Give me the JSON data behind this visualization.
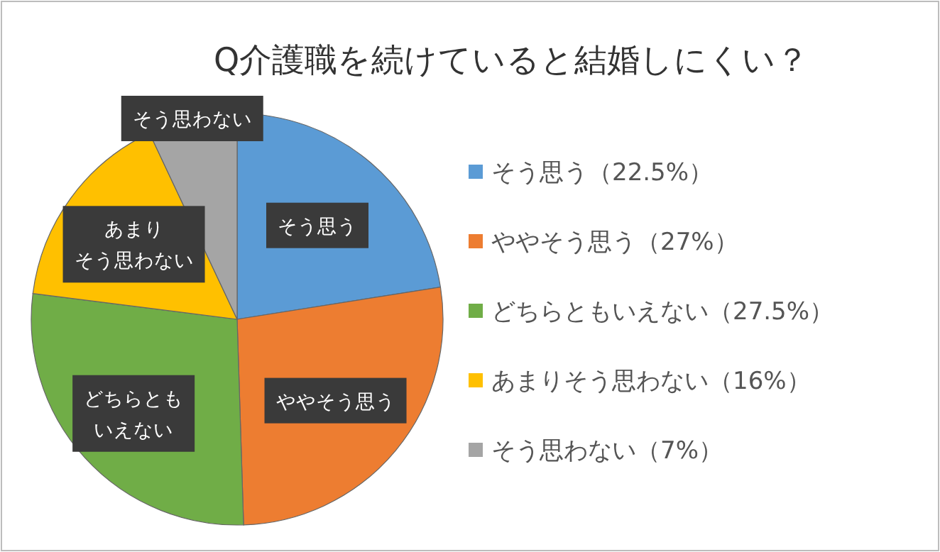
{
  "chart_data": {
    "type": "pie",
    "title": "Q介護職を続けていると結婚しにくい？",
    "categories": [
      "そう思う",
      "ややそう思う",
      "どちらともいえない",
      "あまりそう思わない",
      "そう思わない"
    ],
    "values": [
      22.5,
      27,
      27.5,
      16,
      7
    ],
    "value_labels": [
      "（22.5%）",
      "（27%）",
      "（27.5%）",
      "（16%）",
      "（7%）"
    ],
    "colors": [
      "#5b9bd5",
      "#ed7d31",
      "#70ad47",
      "#ffc000",
      "#a5a5a5"
    ],
    "legend": "right"
  }
}
